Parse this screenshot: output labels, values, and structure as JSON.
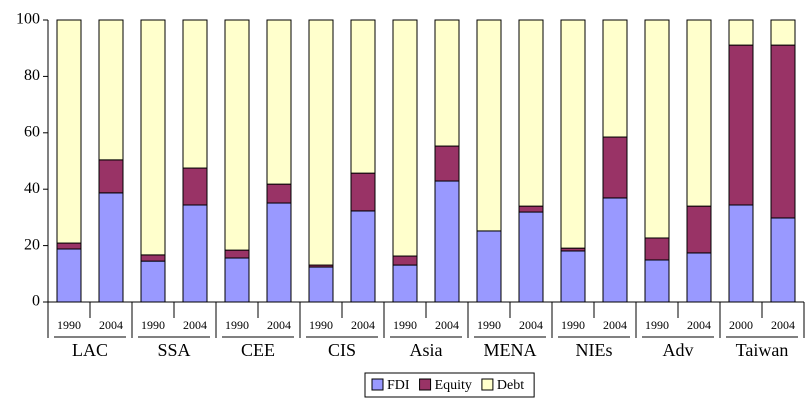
{
  "chart_data": {
    "type": "stacked_bar",
    "categories": [
      "1990",
      "2004",
      "1990",
      "2004",
      "1990",
      "2004",
      "1990",
      "2004",
      "1990",
      "2004",
      "1990",
      "2004",
      "1990",
      "2004",
      "1990",
      "2004",
      "2000",
      "2004"
    ],
    "groups": [
      "LAC",
      "SSA",
      "CEE",
      "CIS",
      "Asia",
      "MENA",
      "NIEs",
      "Adv",
      "Taiwan"
    ],
    "series": [
      {
        "name": "FDI",
        "color": "#9999ff",
        "values": [
          18.8,
          38.7,
          14.5,
          34.4,
          15.6,
          35.1,
          12.4,
          32.3,
          13.1,
          42.9,
          25.2,
          31.9,
          18.1,
          36.9,
          14.9,
          17.4,
          34.4,
          29.8
        ]
      },
      {
        "name": "Equity",
        "color": "#993366",
        "values": [
          2.1,
          11.7,
          2.2,
          13.1,
          2.8,
          6.7,
          0.7,
          13.4,
          3.2,
          12.4,
          0,
          2.1,
          1.0,
          21.6,
          7.8,
          16.6,
          56.7,
          61.3
        ]
      },
      {
        "name": "Debt",
        "color": "#ffffcc",
        "values": [
          79.1,
          49.6,
          83.3,
          52.5,
          81.6,
          58.2,
          86.9,
          54.3,
          83.7,
          44.7,
          74.8,
          66.0,
          80.9,
          41.5,
          77.3,
          66.0,
          8.9,
          8.9
        ]
      }
    ],
    "ylim": [
      0,
      100
    ],
    "yticks": [
      0,
      20,
      40,
      60,
      80,
      100
    ],
    "grid": false
  }
}
